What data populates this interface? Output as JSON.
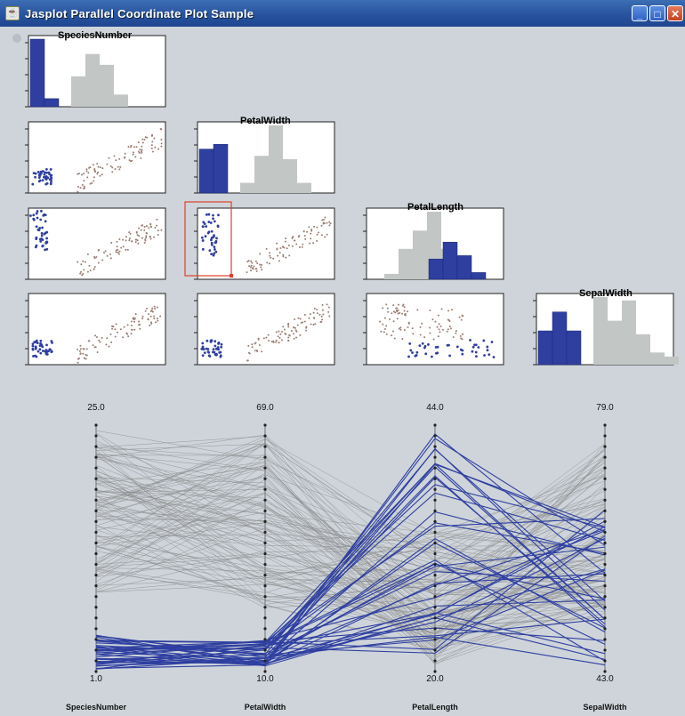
{
  "window": {
    "title": "Jasplot Parallel Coordinate Plot Sample",
    "icon": "java-cup-icon",
    "controls": [
      "minimize",
      "maximize",
      "close"
    ]
  },
  "colors": {
    "selected": "#2e3fa0",
    "unselected": "#8a8a8a",
    "histogram_unselected": "#c2c6c4",
    "brush": "#e0402a",
    "background": "#ced4da"
  },
  "matrix": {
    "diagonal_titles": [
      "SpeciesNumber",
      "PetalWidth",
      "PetalLength",
      "SepalWidth"
    ]
  },
  "parallel": {
    "axes": [
      {
        "name": "SpeciesNumber",
        "top": "25.0",
        "bottom": "1.0"
      },
      {
        "name": "PetalWidth",
        "top": "69.0",
        "bottom": "10.0"
      },
      {
        "name": "PetalLength",
        "top": "44.0",
        "bottom": "20.0"
      },
      {
        "name": "SepalWidth",
        "top": "79.0",
        "bottom": "43.0"
      }
    ]
  },
  "chart_data": {
    "type": "parallel-coordinates",
    "variables": [
      "SpeciesNumber",
      "PetalWidth",
      "PetalLength",
      "SepalWidth"
    ],
    "ranges": {
      "SpeciesNumber": [
        1.0,
        25.0
      ],
      "PetalWidth": [
        10.0,
        69.0
      ],
      "PetalLength": [
        20.0,
        44.0
      ],
      "SepalWidth": [
        43.0,
        79.0
      ]
    }
  }
}
